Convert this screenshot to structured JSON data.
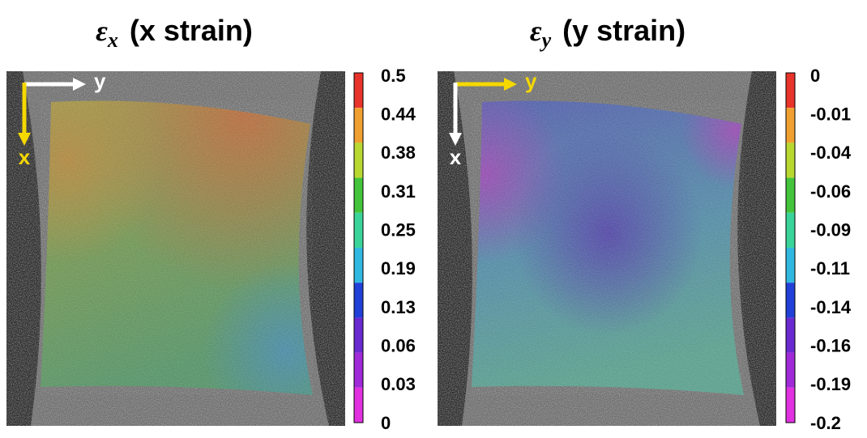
{
  "panels": [
    {
      "title_symbol": "ε",
      "title_subscript": "x",
      "title_text": "(x strain)",
      "arrow_horizontal_label": "y",
      "arrow_vertical_label": "x",
      "colorbar_labels": [
        "0.5",
        "0.44",
        "0.38",
        "0.31",
        "0.25",
        "0.19",
        "0.13",
        "0.06",
        "0.03",
        "0"
      ]
    },
    {
      "title_symbol": "ε",
      "title_subscript": "y",
      "title_text": "(y strain)",
      "arrow_horizontal_label": "y",
      "arrow_vertical_label": "x",
      "colorbar_labels": [
        "0",
        "-0.01",
        "-0.04",
        "-0.06",
        "-0.09",
        "-0.11",
        "-0.14",
        "-0.16",
        "-0.19",
        "-0.2"
      ]
    }
  ]
}
